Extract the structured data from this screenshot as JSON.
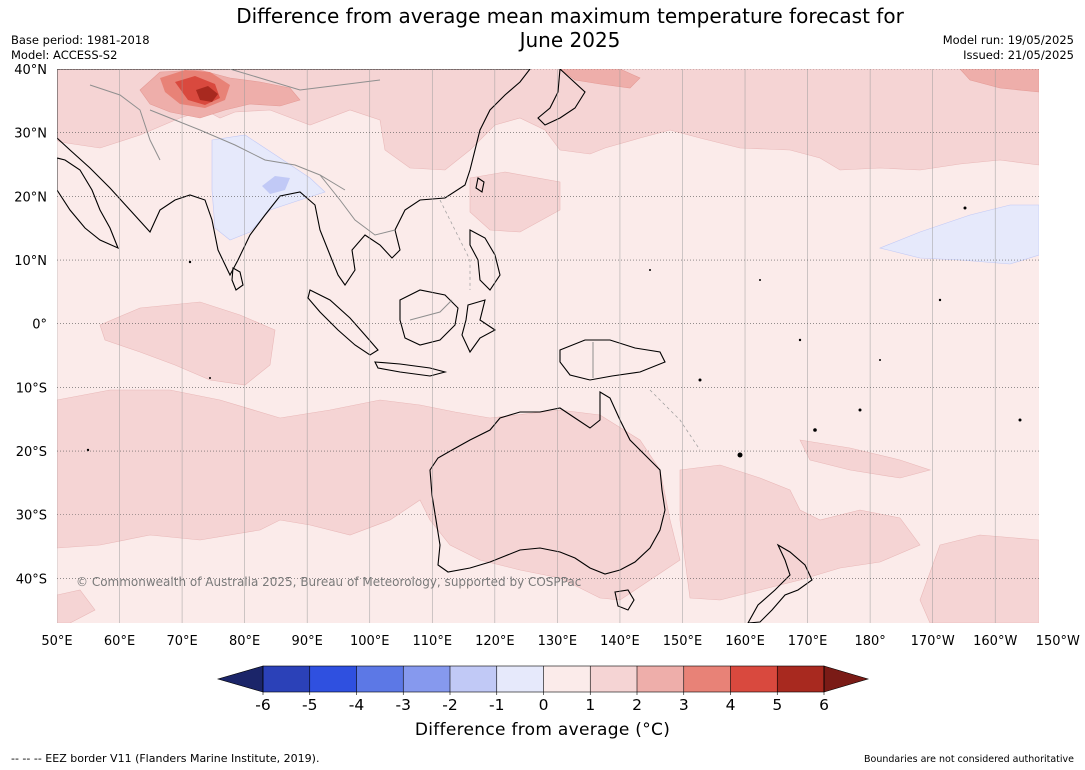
{
  "title_line1": "Difference from average mean maximum temperature forecast for",
  "title_line2": "June 2025",
  "base_period": "Base period: 1981-2018",
  "model": "Model: ACCESS-S2",
  "model_run": "Model run: 19/05/2025",
  "issued": "Issued: 21/05/2025",
  "copyright": "© Commonwealth of Australia 2025, Bureau of Meteorology, supported by COSPPac",
  "colorbar_title": "Difference from average (°C)",
  "footer_left": "--  --  -- EEZ border V11 (Flanders Marine Institute, 2019).",
  "footer_right": "Boundaries are not considered authoritative",
  "map_extent": {
    "lon_range": [
      50,
      207
    ],
    "lat_range": [
      -47,
      40
    ]
  },
  "lat_labels": [
    {
      "text": "40°N",
      "lat": 40
    },
    {
      "text": "30°N",
      "lat": 30
    },
    {
      "text": "20°N",
      "lat": 20
    },
    {
      "text": "10°N",
      "lat": 10
    },
    {
      "text": "0°",
      "lat": 0
    },
    {
      "text": "10°S",
      "lat": -10
    },
    {
      "text": "20°S",
      "lat": -20
    },
    {
      "text": "30°S",
      "lat": -30
    },
    {
      "text": "40°S",
      "lat": -40
    }
  ],
  "lon_labels": [
    {
      "text": "50°E",
      "lon": 50
    },
    {
      "text": "60°E",
      "lon": 60
    },
    {
      "text": "70°E",
      "lon": 70
    },
    {
      "text": "80°E",
      "lon": 80
    },
    {
      "text": "90°E",
      "lon": 90
    },
    {
      "text": "100°E",
      "lon": 100
    },
    {
      "text": "110°E",
      "lon": 110
    },
    {
      "text": "120°E",
      "lon": 120
    },
    {
      "text": "130°E",
      "lon": 130
    },
    {
      "text": "140°E",
      "lon": 140
    },
    {
      "text": "150°E",
      "lon": 150
    },
    {
      "text": "160°E",
      "lon": 160
    },
    {
      "text": "170°E",
      "lon": 170
    },
    {
      "text": "180°",
      "lon": 180
    },
    {
      "text": "170°W",
      "lon": 190
    },
    {
      "text": "160°W",
      "lon": 200
    },
    {
      "text": "150°W",
      "lon": 210
    }
  ],
  "colorbar": {
    "ticks": [
      "-6",
      "-5",
      "-4",
      "-3",
      "-2",
      "-1",
      "0",
      "1",
      "2",
      "3",
      "4",
      "5",
      "6"
    ],
    "colors": [
      "#24318e",
      "#2b41b8",
      "#2f50e0",
      "#5c78e6",
      "#8699ee",
      "#c1c9f6",
      "#e6e9fb",
      "#fbebea",
      "#f5d4d4",
      "#eeaeaa",
      "#e88277",
      "#d9493e",
      "#a8291f"
    ],
    "under_color": "#1b2569",
    "over_color": "#7a1b16"
  },
  "colors": {
    "ocean_base": "#fbebea",
    "anomaly_1_2": "#f5d4d4",
    "anomaly_2_3": "#eeaeaa",
    "anomaly_3_4": "#e88277",
    "anomaly_4_5": "#d9493e",
    "anomaly_5_6": "#a8291f",
    "anomaly_neg": "#e6e9fb",
    "coastline": "#000000",
    "border": "#8f8f8f"
  }
}
